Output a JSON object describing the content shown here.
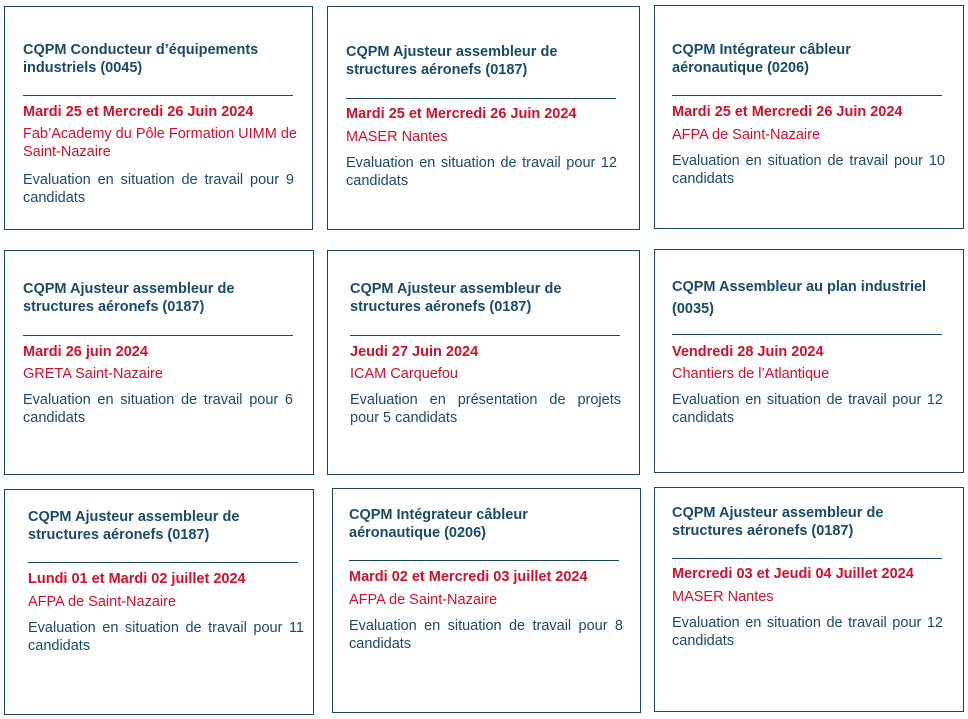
{
  "cards": [
    {
      "title": "CQPM Conducteur d’équipements industriels (0045)",
      "date": "Mardi 25 et Mercredi 26 Juin 2024",
      "location": "Fab’Academy du Pôle Formation UIMM de Saint-Nazaire",
      "description": "Evaluation en situation de travail pour 9 candidats"
    },
    {
      "title": "CQPM Ajusteur assembleur de structures aéronefs (0187)",
      "date": "Mardi 25 et Mercredi 26 Juin 2024",
      "location": "MASER Nantes",
      "description": "Evaluation en situation de travail pour 12 candidats"
    },
    {
      "title": "CQPM Intégrateur câbleur aéronautique (0206)",
      "date": "Mardi 25 et Mercredi 26 Juin 2024",
      "location": "AFPA de Saint-Nazaire",
      "description": "Evaluation en situation de travail pour 10 candidats"
    },
    {
      "title": "CQPM Ajusteur assembleur de structures aéronefs (0187)",
      "date": "Mardi 26 juin 2024",
      "location": "GRETA Saint-Nazaire",
      "description": "Evaluation en situation de travail pour 6 candidats"
    },
    {
      "title": "CQPM Ajusteur assembleur de structures aéronefs (0187)",
      "date": "Jeudi 27 Juin 2024",
      "location": "ICAM Carquefou",
      "description": "Evaluation en présentation de projets pour 5 candidats"
    },
    {
      "title": "CQPM Assembleur au plan industriel (0035)",
      "date": "Vendredi 28 Juin 2024",
      "location": "Chantiers de l’Atlantique",
      "description": "Evaluation en situation de travail pour 12 candidats"
    },
    {
      "title": "CQPM Ajusteur assembleur de structures aéronefs (0187)",
      "date": "Lundi 01 et Mardi 02 juillet 2024",
      "location": "AFPA de Saint-Nazaire",
      "description": "Evaluation en situation de travail pour 11 candidats"
    },
    {
      "title": "CQPM Intégrateur câbleur aéronautique (0206)",
      "date": "Mardi 02 et Mercredi 03 juillet 2024",
      "location": "AFPA de Saint-Nazaire",
      "description": "Evaluation en situation de travail pour 8 candidats"
    },
    {
      "title": "CQPM Ajusteur assembleur de structures aéronefs (0187)",
      "date": "Mercredi 03 et Jeudi 04 Juillet 2024",
      "location": "MASER Nantes",
      "description": "Evaluation en situation de travail pour 12 candidats"
    }
  ]
}
